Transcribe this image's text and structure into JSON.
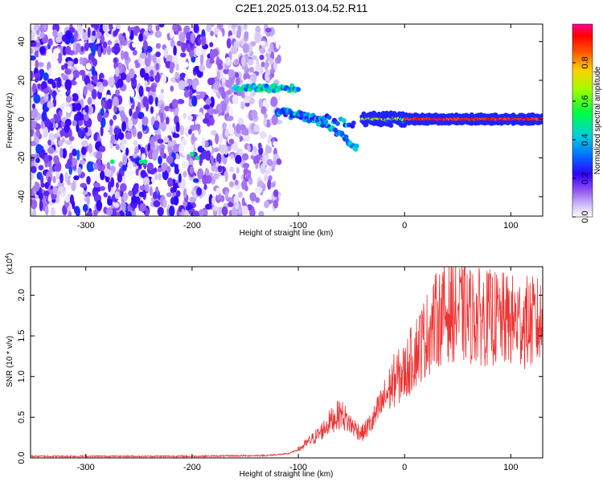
{
  "title": "C2E1.2025.013.04.52.R11",
  "chart_data": [
    {
      "type": "heatmap",
      "xlabel": "Height of straight line (km)",
      "ylabel": "Frequency (Hz)",
      "xlim": [
        -352,
        130
      ],
      "ylim": [
        -50,
        49
      ],
      "xticks": [
        -300,
        -200,
        -100,
        0,
        100
      ],
      "yticks": [
        -40,
        -20,
        0,
        20,
        40
      ],
      "colorbar": {
        "label": "Normalized spectral amplitude",
        "range": [
          0,
          1
        ],
        "ticks": [
          "0.0",
          "0.2",
          "0.4",
          "0.6",
          "0.8"
        ],
        "colors": [
          "#ffffff",
          "#b0a0f0",
          "#6010e0",
          "#0000ff",
          "#00c0ff",
          "#00ff60",
          "#c0ff00",
          "#ffc000",
          "#ff0000",
          "#ff0080"
        ]
      },
      "features": [
        {
          "x_range": [
            -352,
            -148
          ],
          "freq_range": [
            -50,
            49
          ],
          "amplitude": 0.15
        },
        {
          "x_range": [
            -160,
            -100
          ],
          "freq": 16,
          "amplitude": 0.5
        },
        {
          "x_range": [
            -120,
            -45
          ],
          "freq_start": 4,
          "freq_end": -15,
          "amplitude": 0.45
        },
        {
          "x_range": [
            -40,
            130
          ],
          "freq": 0,
          "amplitude": 0.85
        }
      ]
    },
    {
      "type": "line",
      "xlabel": "Height of straight line (km)",
      "ylabel": "SNR (10 * v/v)",
      "yscale_label": "(x10",
      "yscale_exp": "4",
      "yscale_close": ")",
      "xlim": [
        -352,
        130
      ],
      "ylim": [
        0,
        2.35
      ],
      "xticks": [
        -300,
        -200,
        -100,
        0,
        100
      ],
      "yticks": [
        "0.0",
        "0.5",
        "1.0",
        "1.5",
        "2.0"
      ],
      "series": [
        {
          "color": "#ee3333",
          "x": [
            -352,
            -200,
            -130,
            -110,
            -100,
            -90,
            -80,
            -70,
            -60,
            -50,
            -40,
            -30,
            -20,
            -10,
            0,
            10,
            20,
            30,
            40,
            50,
            60,
            80,
            100,
            130
          ],
          "y": [
            0.02,
            0.02,
            0.03,
            0.05,
            0.1,
            0.2,
            0.3,
            0.45,
            0.55,
            0.4,
            0.3,
            0.45,
            0.7,
            0.95,
            1.05,
            1.3,
            1.5,
            1.7,
            1.8,
            1.8,
            1.75,
            1.72,
            1.68,
            1.65
          ]
        }
      ]
    }
  ]
}
